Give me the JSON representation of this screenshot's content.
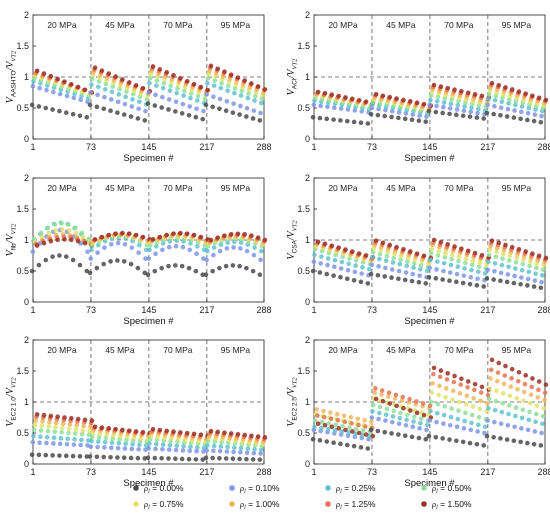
{
  "chart_data": {
    "type": "scatter",
    "x_ticks": [
      "1",
      "73",
      "145",
      "217",
      "288"
    ],
    "x_domain": [
      1,
      288
    ],
    "xlabel": "Specimen #",
    "y_ticks": [
      "0",
      "0.5",
      "1",
      "1.5",
      "2"
    ],
    "ylim": [
      0,
      2
    ],
    "grid": false,
    "reference_line_y": 1,
    "group_separators_x": [
      73,
      145,
      217
    ],
    "groups": [
      "20 MPa",
      "45 MPa",
      "70 MPa",
      "95 MPa"
    ],
    "series": [
      {
        "name": "ρl = 0.00%",
        "label_var": "ρ",
        "label_sub": "l",
        "label_value": " = 0.00%",
        "color": "#4a4a4a"
      },
      {
        "name": "ρl = 0.10%",
        "label_var": "ρ",
        "label_sub": "l",
        "label_value": " = 0.10%",
        "color": "#7f95e6"
      },
      {
        "name": "ρl = 0.25%",
        "label_var": "ρ",
        "label_sub": "l",
        "label_value": " = 0.25%",
        "color": "#5fc3cf"
      },
      {
        "name": "ρl = 0.50%",
        "label_var": "ρ",
        "label_sub": "l",
        "label_value": " = 0.50%",
        "color": "#8fdf9a"
      },
      {
        "name": "ρl = 0.75%",
        "label_var": "ρ",
        "label_sub": "l",
        "label_value": " = 0.75%",
        "color": "#e0e36a"
      },
      {
        "name": "ρl = 1.00%",
        "label_var": "ρ",
        "label_sub": "l",
        "label_value": " = 1.00%",
        "color": "#f0b65e"
      },
      {
        "name": "ρl = 1.25%",
        "label_var": "ρ",
        "label_sub": "l",
        "label_value": " = 1.25%",
        "color": "#e57452"
      },
      {
        "name": "ρl = 1.50%",
        "label_var": "ρ",
        "label_sub": "l",
        "label_value": " = 1.50%",
        "color": "#9a2f25"
      }
    ],
    "panels": [
      {
        "ylabel": {
          "main": "V",
          "sub": "AASHTO",
          "den": "V",
          "den_sub": "VT2"
        },
        "pattern": "decreasing",
        "group_levels": [
          [
            0.55,
            0.85,
            0.93,
            0.98,
            1.02,
            1.05,
            1.07,
            1.1
          ],
          [
            0.55,
            0.75,
            0.88,
            0.97,
            1.03,
            1.08,
            1.12,
            1.15
          ],
          [
            0.57,
            0.75,
            0.9,
            0.98,
            1.05,
            1.1,
            1.14,
            1.17
          ],
          [
            0.55,
            0.72,
            0.9,
            0.98,
            1.05,
            1.1,
            1.15,
            1.18
          ]
        ],
        "group_drops": [
          [
            0.2,
            0.25,
            0.27,
            0.28,
            0.3,
            0.3,
            0.32,
            0.35
          ],
          [
            0.25,
            0.3,
            0.32,
            0.33,
            0.34,
            0.35,
            0.36,
            0.38
          ],
          [
            0.25,
            0.3,
            0.32,
            0.33,
            0.34,
            0.35,
            0.36,
            0.38
          ],
          [
            0.25,
            0.3,
            0.32,
            0.33,
            0.34,
            0.35,
            0.36,
            0.38
          ]
        ]
      },
      {
        "ylabel": {
          "main": "V",
          "sub": "ACI",
          "den": "V",
          "den_sub": "VT2"
        },
        "pattern": "decreasing",
        "group_levels": [
          [
            0.35,
            0.55,
            0.62,
            0.66,
            0.7,
            0.72,
            0.74,
            0.76
          ],
          [
            0.4,
            0.5,
            0.56,
            0.6,
            0.64,
            0.67,
            0.7,
            0.72
          ],
          [
            0.45,
            0.55,
            0.63,
            0.7,
            0.76,
            0.8,
            0.84,
            0.87
          ],
          [
            0.42,
            0.55,
            0.65,
            0.72,
            0.78,
            0.83,
            0.87,
            0.9
          ]
        ],
        "group_drops": [
          [
            0.1,
            0.12,
            0.14,
            0.15,
            0.16,
            0.17,
            0.18,
            0.18
          ],
          [
            0.12,
            0.14,
            0.15,
            0.16,
            0.17,
            0.18,
            0.18,
            0.18
          ],
          [
            0.12,
            0.15,
            0.17,
            0.18,
            0.2,
            0.2,
            0.2,
            0.2
          ],
          [
            0.15,
            0.18,
            0.2,
            0.22,
            0.24,
            0.25,
            0.26,
            0.27
          ]
        ]
      },
      {
        "ylabel": {
          "main": "V",
          "sub": "fib",
          "den": "V",
          "den_sub": "VT2"
        },
        "pattern": "arch",
        "group_levels": [
          [
            0.6,
            0.95,
            1.1,
            1.12,
            1.05,
            1.0,
            0.98,
            0.95
          ],
          [
            0.55,
            0.8,
            0.92,
            0.98,
            1.0,
            1.02,
            1.04,
            1.05
          ],
          [
            0.5,
            0.78,
            0.9,
            0.96,
            1.0,
            1.02,
            1.04,
            1.05
          ],
          [
            0.5,
            0.76,
            0.88,
            0.95,
            0.98,
            1.0,
            1.02,
            1.04
          ]
        ],
        "group_drops": [
          [
            0.25,
            0.35,
            0.3,
            0.25,
            0.2,
            0.15,
            0.12,
            0.1
          ],
          [
            0.2,
            0.25,
            0.2,
            0.15,
            0.12,
            0.1,
            0.1,
            0.1
          ],
          [
            0.15,
            0.2,
            0.15,
            0.12,
            0.1,
            0.1,
            0.1,
            0.1
          ],
          [
            0.15,
            0.2,
            0.15,
            0.12,
            0.1,
            0.1,
            0.1,
            0.1
          ]
        ]
      },
      {
        "ylabel": {
          "main": "V",
          "sub": "CSA",
          "den": "V",
          "den_sub": "VT2"
        },
        "pattern": "decreasing",
        "group_levels": [
          [
            0.5,
            0.65,
            0.76,
            0.85,
            0.9,
            0.93,
            0.95,
            0.97
          ],
          [
            0.45,
            0.6,
            0.72,
            0.8,
            0.87,
            0.92,
            0.96,
            0.99
          ],
          [
            0.4,
            0.55,
            0.68,
            0.78,
            0.85,
            0.92,
            0.96,
            1.0
          ],
          [
            0.38,
            0.52,
            0.65,
            0.76,
            0.84,
            0.9,
            0.95,
            0.99
          ]
        ],
        "group_drops": [
          [
            0.2,
            0.22,
            0.23,
            0.24,
            0.24,
            0.25,
            0.25,
            0.25
          ],
          [
            0.15,
            0.2,
            0.22,
            0.24,
            0.25,
            0.26,
            0.27,
            0.28
          ],
          [
            0.15,
            0.2,
            0.22,
            0.24,
            0.25,
            0.26,
            0.27,
            0.28
          ],
          [
            0.15,
            0.2,
            0.22,
            0.24,
            0.25,
            0.26,
            0.27,
            0.28
          ]
        ]
      },
      {
        "ylabel": {
          "main": "V",
          "sub": "EC2 1.0",
          "den": "V",
          "den_sub": "VT2"
        },
        "pattern": "decreasing",
        "group_levels": [
          [
            0.15,
            0.35,
            0.45,
            0.55,
            0.63,
            0.7,
            0.76,
            0.8
          ],
          [
            0.12,
            0.28,
            0.37,
            0.44,
            0.5,
            0.55,
            0.58,
            0.6
          ],
          [
            0.1,
            0.25,
            0.33,
            0.4,
            0.45,
            0.5,
            0.53,
            0.56
          ],
          [
            0.1,
            0.22,
            0.3,
            0.37,
            0.42,
            0.46,
            0.5,
            0.53
          ]
        ],
        "group_drops": [
          [
            0.03,
            0.05,
            0.07,
            0.08,
            0.1,
            0.1,
            0.1,
            0.1
          ],
          [
            0.03,
            0.05,
            0.07,
            0.08,
            0.1,
            0.1,
            0.1,
            0.1
          ],
          [
            0.03,
            0.05,
            0.07,
            0.08,
            0.1,
            0.1,
            0.1,
            0.1
          ],
          [
            0.03,
            0.05,
            0.07,
            0.08,
            0.1,
            0.1,
            0.1,
            0.1
          ]
        ]
      },
      {
        "ylabel": {
          "main": "V",
          "sub": "EC2 2.5",
          "den": "V",
          "den_sub": "VT2"
        },
        "pattern": "decreasing",
        "group_levels": [
          [
            0.4,
            0.55,
            0.6,
            0.7,
            0.8,
            0.88,
            0.78,
            0.65
          ],
          [
            0.55,
            0.75,
            0.85,
            0.95,
            1.05,
            1.15,
            1.22,
            1.05
          ],
          [
            0.45,
            0.7,
            0.85,
            1.0,
            1.15,
            1.3,
            1.45,
            1.55
          ],
          [
            0.45,
            0.7,
            0.9,
            1.05,
            1.22,
            1.38,
            1.52,
            1.68
          ]
        ],
        "group_drops": [
          [
            0.15,
            0.15,
            0.15,
            0.18,
            0.2,
            0.2,
            0.2,
            0.2
          ],
          [
            0.15,
            0.2,
            0.22,
            0.25,
            0.25,
            0.25,
            0.28,
            0.3
          ],
          [
            0.15,
            0.2,
            0.25,
            0.28,
            0.3,
            0.32,
            0.34,
            0.35
          ],
          [
            0.15,
            0.2,
            0.25,
            0.28,
            0.32,
            0.35,
            0.37,
            0.4
          ]
        ]
      }
    ]
  }
}
